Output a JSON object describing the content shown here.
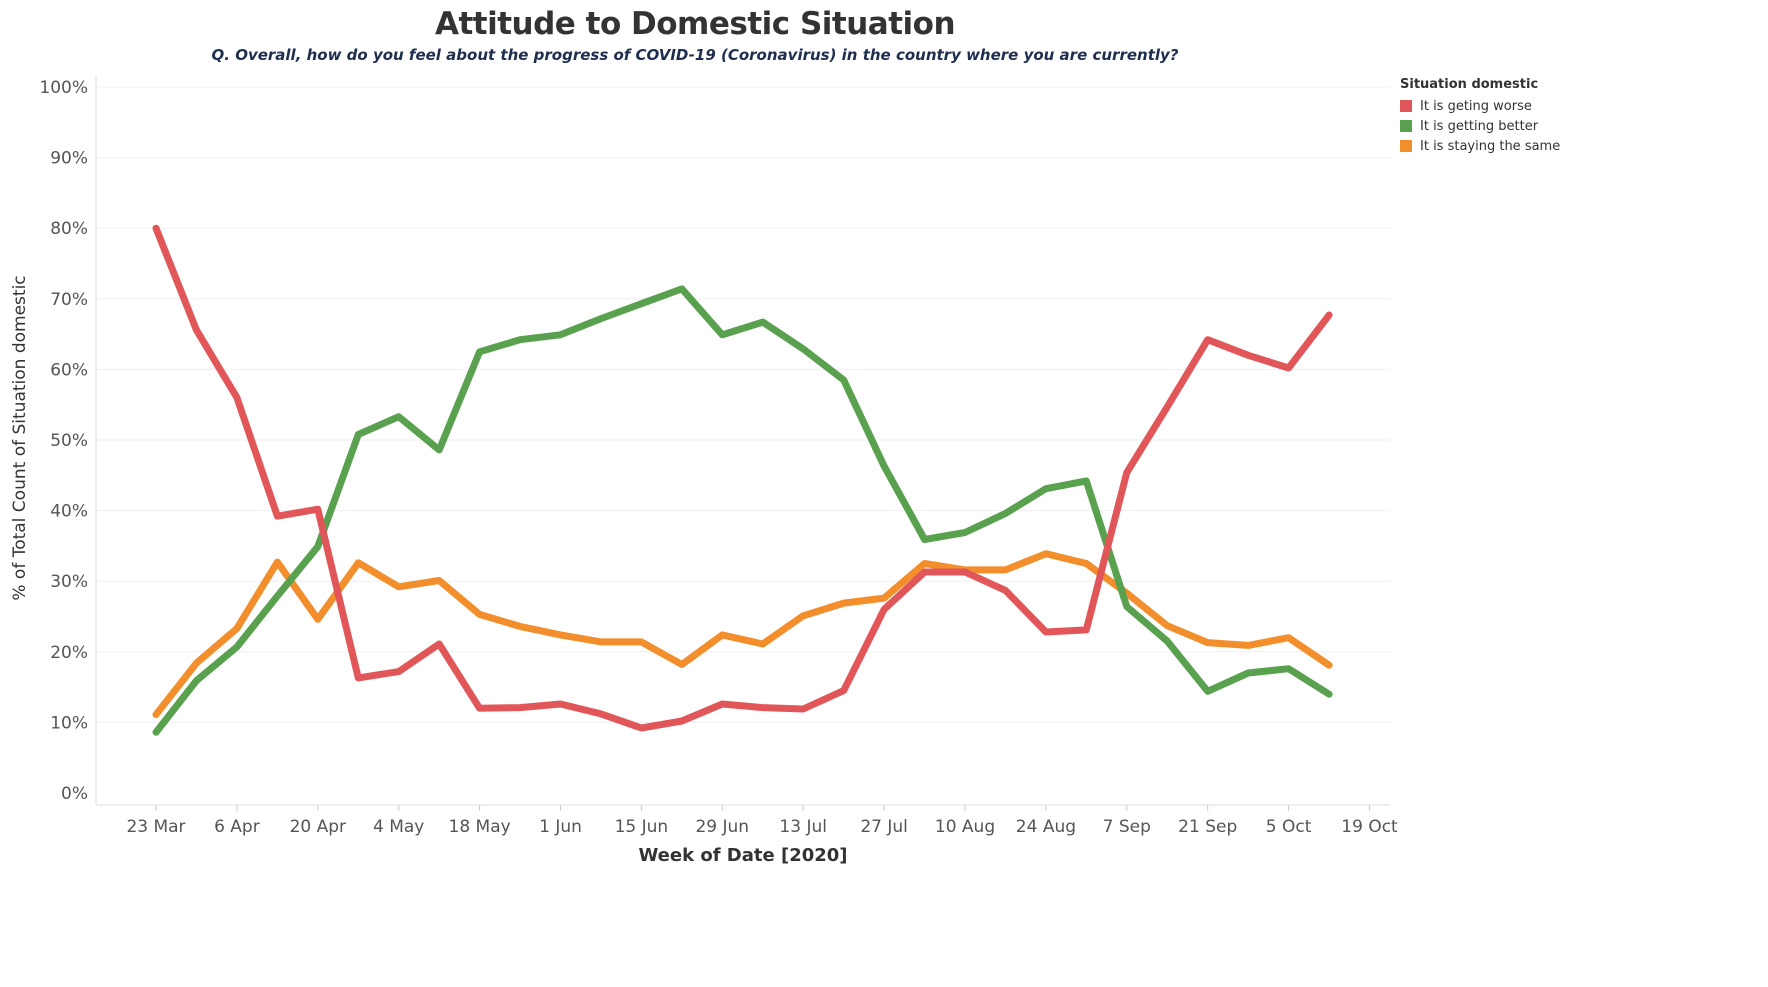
{
  "chart_data": {
    "type": "line",
    "title": "Attitude to Domestic Situation",
    "subtitle": "Q. Overall, how do you feel about the progress of COVID-19 (Coronavirus) in the country where you are currently?",
    "xlabel": "Week of Date [2020]",
    "ylabel": "% of Total Count of Situation domestic",
    "legend_title": "Situation domestic",
    "legend_position": "top-right",
    "grid": true,
    "ylim": [
      0,
      100
    ],
    "y_ticks": [
      "0%",
      "10%",
      "20%",
      "30%",
      "40%",
      "50%",
      "60%",
      "70%",
      "80%",
      "90%",
      "100%"
    ],
    "x_ticks": [
      "23 Mar",
      "6 Apr",
      "20 Apr",
      "4 May",
      "18 May",
      "1 Jun",
      "15 Jun",
      "29 Jun",
      "13 Jul",
      "27 Jul",
      "10 Aug",
      "24 Aug",
      "7 Sep",
      "21 Sep",
      "5 Oct",
      "19 Oct"
    ],
    "x": [
      "23 Mar",
      "30 Mar",
      "6 Apr",
      "13 Apr",
      "20 Apr",
      "27 Apr",
      "4 May",
      "11 May",
      "18 May",
      "25 May",
      "1 Jun",
      "8 Jun",
      "15 Jun",
      "22 Jun",
      "29 Jun",
      "6 Jul",
      "13 Jul",
      "20 Jul",
      "27 Jul",
      "3 Aug",
      "10 Aug",
      "17 Aug",
      "24 Aug",
      "31 Aug",
      "7 Sep",
      "14 Sep",
      "21 Sep",
      "28 Sep",
      "5 Oct",
      "12 Oct"
    ],
    "series": [
      {
        "name": "It is geting worse",
        "color": "#e15759",
        "values": [
          80.0,
          65.6,
          56.0,
          39.2,
          40.2,
          16.3,
          17.2,
          21.1,
          12.0,
          12.1,
          12.6,
          11.2,
          9.2,
          10.2,
          12.6,
          12.1,
          11.9,
          14.5,
          26.0,
          31.3,
          31.3,
          28.7,
          22.8,
          23.1,
          45.4,
          54.7,
          64.2,
          62.0,
          60.2,
          67.7
        ]
      },
      {
        "name": "It is getting better",
        "color": "#59a14f",
        "values": [
          8.6,
          15.9,
          20.7,
          27.9,
          34.9,
          50.8,
          53.3,
          48.6,
          62.5,
          64.2,
          64.9,
          67.2,
          69.3,
          71.4,
          64.9,
          66.7,
          62.9,
          58.5,
          46.3,
          35.9,
          36.9,
          39.6,
          43.1,
          44.2,
          26.4,
          21.5,
          14.4,
          17.0,
          17.6,
          14.0
        ]
      },
      {
        "name": "It is staying the same",
        "color": "#f28e2b",
        "values": [
          11.1,
          18.4,
          23.3,
          32.7,
          24.6,
          32.6,
          29.2,
          30.1,
          25.3,
          23.6,
          22.4,
          21.4,
          21.4,
          18.2,
          22.4,
          21.1,
          25.1,
          26.9,
          27.6,
          32.5,
          31.6,
          31.6,
          33.9,
          32.5,
          28.3,
          23.7,
          21.3,
          20.9,
          22.0,
          18.1
        ]
      }
    ]
  }
}
